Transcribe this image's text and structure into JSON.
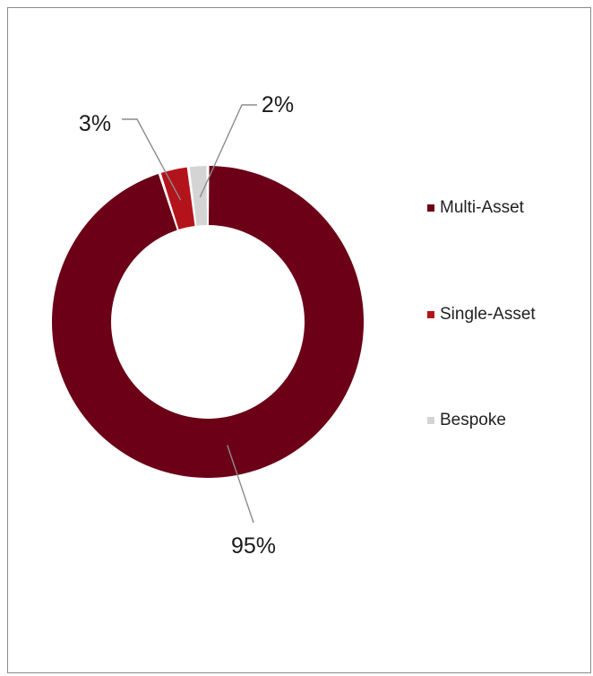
{
  "chart_data": {
    "type": "pie",
    "donut": true,
    "labels": [
      "Multi-Asset",
      "Single-Asset",
      "Bespoke"
    ],
    "values": [
      95,
      3,
      2
    ],
    "value_labels": [
      "95%",
      "3%",
      "2%"
    ],
    "colors": [
      "#6b0016",
      "#b3141b",
      "#d4d4d4"
    ],
    "legend_position": "right"
  }
}
